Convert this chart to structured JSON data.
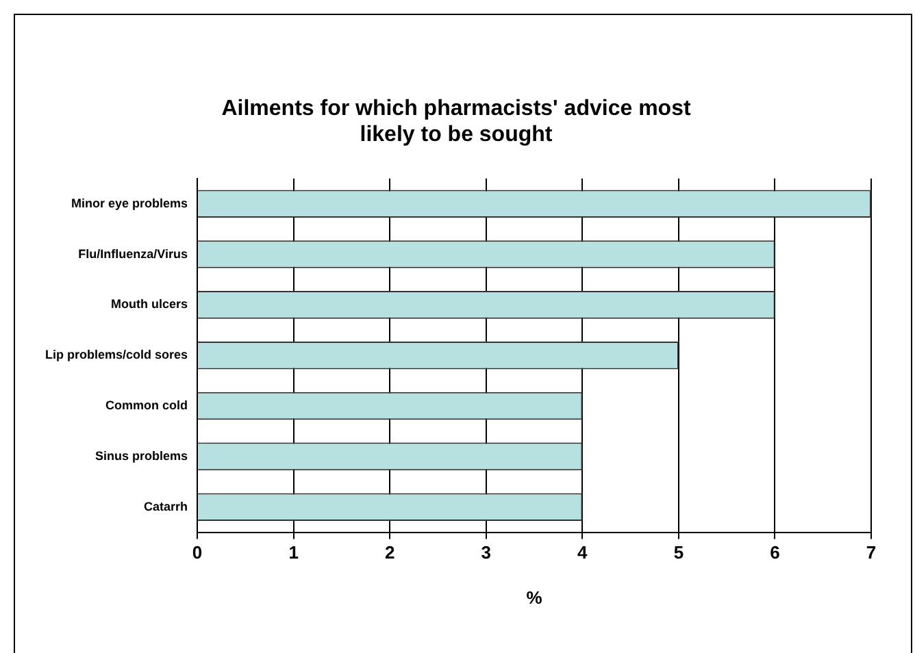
{
  "chart_data": {
    "type": "bar",
    "orientation": "horizontal",
    "title": "Ailments for which pharmacists' advice most likely to be sought",
    "categories": [
      "Minor eye problems",
      "Flu/Influenza/Virus",
      "Mouth ulcers",
      "Lip problems/cold sores",
      "Common cold",
      "Sinus problems",
      "Catarrh"
    ],
    "values": [
      7,
      6,
      6,
      5,
      4,
      4,
      4
    ],
    "color": "#b7e1e1",
    "xlim": [
      0,
      7
    ],
    "xticks": [
      0,
      1,
      2,
      3,
      4,
      5,
      6,
      7
    ],
    "xlabel": "%",
    "grid": "x",
    "legend": false
  }
}
